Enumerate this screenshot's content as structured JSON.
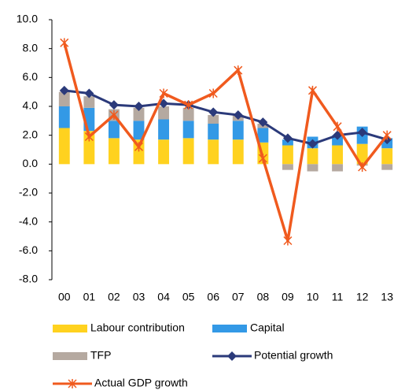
{
  "chart_data": {
    "type": "bar",
    "categories": [
      "00",
      "01",
      "02",
      "03",
      "04",
      "05",
      "06",
      "07",
      "08",
      "09",
      "10",
      "11",
      "12",
      "13"
    ],
    "series": [
      {
        "name": "Labour contribution",
        "kind": "bar",
        "color": "#FFD21F",
        "values": [
          2.5,
          2.3,
          1.8,
          1.7,
          1.7,
          1.8,
          1.7,
          1.7,
          1.5,
          1.3,
          1.1,
          1.3,
          1.4,
          1.1
        ]
      },
      {
        "name": "Capital",
        "kind": "bar",
        "color": "#3399E6",
        "values": [
          1.5,
          1.6,
          1.2,
          1.3,
          1.4,
          1.2,
          1.1,
          1.3,
          1.0,
          0.4,
          0.8,
          0.7,
          1.2,
          0.7
        ]
      },
      {
        "name": "TFP",
        "kind": "bar",
        "color": "#B5A9A0",
        "values": [
          1.0,
          0.8,
          0.8,
          0.9,
          0.9,
          0.9,
          0.6,
          0.4,
          0.3,
          -0.4,
          -0.5,
          -0.5,
          -0.1,
          -0.4
        ]
      },
      {
        "name": "Potential growth",
        "kind": "line",
        "marker": "diamond",
        "color": "#2B3A7A",
        "values": [
          5.1,
          4.9,
          4.1,
          4.0,
          4.2,
          4.1,
          3.6,
          3.4,
          2.9,
          1.8,
          1.4,
          2.0,
          2.2,
          1.7
        ]
      },
      {
        "name": "Actual GDP growth",
        "kind": "line",
        "marker": "star",
        "color": "#F05A1E",
        "values": [
          8.4,
          1.9,
          3.4,
          1.2,
          4.9,
          4.1,
          4.9,
          6.5,
          0.4,
          -5.3,
          5.1,
          2.6,
          -0.2,
          2.0
        ]
      }
    ],
    "ylim": [
      -8,
      10
    ],
    "yticks": [
      {
        "value": 10,
        "label": "10.0"
      },
      {
        "value": 8,
        "label": "8.0"
      },
      {
        "value": 6,
        "label": "6.0"
      },
      {
        "value": 4,
        "label": "4.0"
      },
      {
        "value": 2,
        "label": "2.0"
      },
      {
        "value": 0,
        "label": "0.0"
      },
      {
        "value": -2,
        "label": "-2.0"
      },
      {
        "value": -4,
        "label": "-4.0"
      },
      {
        "value": -6,
        "label": "-6.0"
      },
      {
        "value": -8,
        "label": "-8.0"
      }
    ],
    "legend": "bottom"
  }
}
